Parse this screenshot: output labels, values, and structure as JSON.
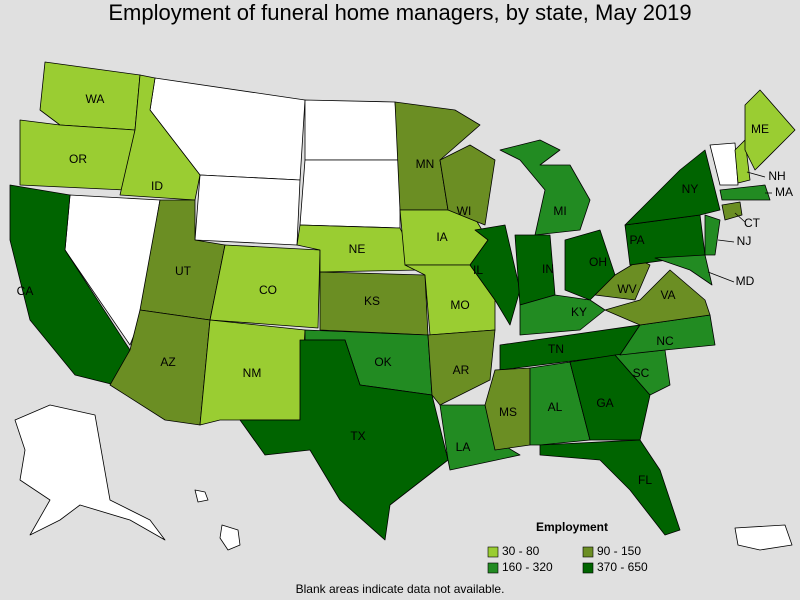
{
  "title": "Employment of funeral home managers, by state, May 2019",
  "states": [
    {
      "label": "WA",
      "color": "#9acd32"
    },
    {
      "label": "OR",
      "color": "#9acd32"
    },
    {
      "label": "CA",
      "color": "#006400"
    },
    {
      "label": "ID",
      "color": "#9acd32"
    },
    {
      "label": "UT",
      "color": "#6b8e23"
    },
    {
      "label": "AZ",
      "color": "#6b8e23"
    },
    {
      "label": "CO",
      "color": "#9acd32"
    },
    {
      "label": "NM",
      "color": "#9acd32"
    },
    {
      "label": "NE",
      "color": "#9acd32"
    },
    {
      "label": "KS",
      "color": "#6b8e23"
    },
    {
      "label": "OK",
      "color": "#228b22"
    },
    {
      "label": "TX",
      "color": "#006400"
    },
    {
      "label": "MN",
      "color": "#6b8e23"
    },
    {
      "label": "IA",
      "color": "#9acd32"
    },
    {
      "label": "MO",
      "color": "#9acd32"
    },
    {
      "label": "AR",
      "color": "#6b8e23"
    },
    {
      "label": "LA",
      "color": "#228b22"
    },
    {
      "label": "WI",
      "color": "#6b8e23"
    },
    {
      "label": "IL",
      "color": "#006400"
    },
    {
      "label": "MI",
      "color": "#228b22"
    },
    {
      "label": "IN",
      "color": "#006400"
    },
    {
      "label": "OH",
      "color": "#006400"
    },
    {
      "label": "KY",
      "color": "#228b22"
    },
    {
      "label": "TN",
      "color": "#006400"
    },
    {
      "label": "MS",
      "color": "#6b8e23"
    },
    {
      "label": "AL",
      "color": "#228b22"
    },
    {
      "label": "GA",
      "color": "#006400"
    },
    {
      "label": "FL",
      "color": "#006400"
    },
    {
      "label": "SC",
      "color": "#228b22"
    },
    {
      "label": "NC",
      "color": "#228b22"
    },
    {
      "label": "VA",
      "color": "#6b8e23"
    },
    {
      "label": "WV",
      "color": "#6b8e23"
    },
    {
      "label": "PA",
      "color": "#006400"
    },
    {
      "label": "NY",
      "color": "#006400"
    },
    {
      "label": "NJ",
      "color": "#228b22"
    },
    {
      "label": "MD",
      "color": "#228b22"
    },
    {
      "label": "CT",
      "color": "#6b8e23"
    },
    {
      "label": "MA",
      "color": "#228b22"
    },
    {
      "label": "NH",
      "color": "#9acd32"
    },
    {
      "label": "ME",
      "color": "#9acd32"
    }
  ],
  "legend": {
    "title": "Employment",
    "items": [
      {
        "label": "30 - 80",
        "color": "#9acd32"
      },
      {
        "label": "90 - 150",
        "color": "#6b8e23"
      },
      {
        "label": "160 - 320",
        "color": "#228b22"
      },
      {
        "label": "370 - 650",
        "color": "#006400"
      }
    ]
  },
  "footnote": "Blank areas indicate data not available."
}
